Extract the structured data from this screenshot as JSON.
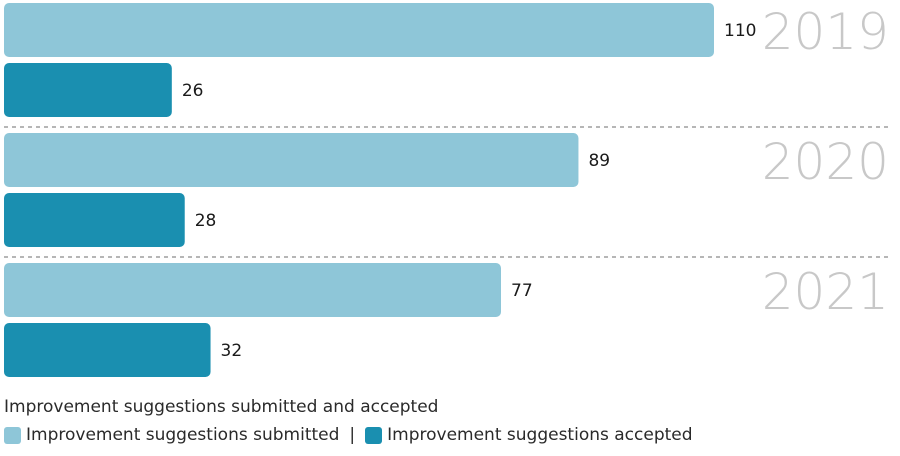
{
  "chart_data": {
    "type": "bar",
    "orientation": "horizontal",
    "categories": [
      "2019",
      "2020",
      "2021"
    ],
    "series": [
      {
        "name": "Improvement suggestions submitted",
        "values": [
          110,
          89,
          77
        ],
        "color": "#8ec6d8"
      },
      {
        "name": "Improvement suggestions accepted",
        "values": [
          26,
          28,
          32
        ],
        "color": "#1a8fb0"
      }
    ],
    "title": "Improvement suggestions submitted and accepted",
    "xlim": [
      0,
      110
    ],
    "grid": false,
    "legend_position": "bottom-left",
    "separator_color": "#8a8a8a",
    "year_label_color": "#c8c8c8",
    "value_label_color": "#1a1a1a"
  },
  "legend": {
    "sep": "|"
  }
}
